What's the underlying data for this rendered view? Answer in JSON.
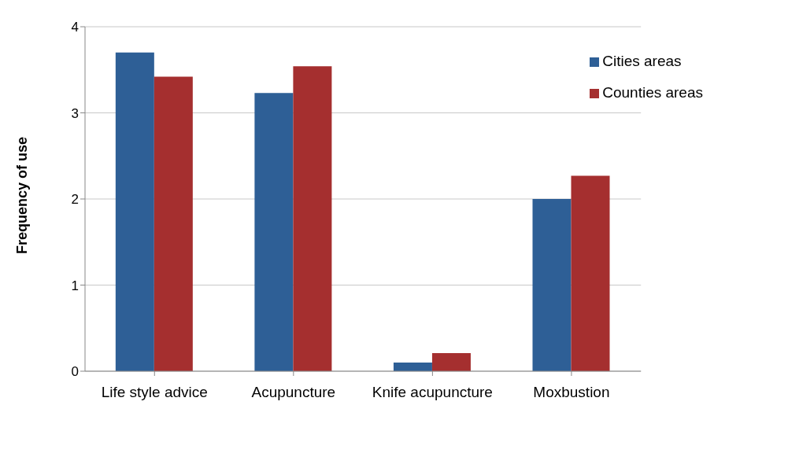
{
  "chart_data": {
    "type": "bar",
    "ylabel": "Frequency of use",
    "categories": [
      "Life style advice",
      "Acupuncture",
      "Knife acupuncture",
      "Moxbustion"
    ],
    "series": [
      {
        "name": "Cities areas",
        "color": "#2e5f96",
        "values": [
          3.7,
          3.23,
          0.1,
          2.0
        ]
      },
      {
        "name": "Counties areas",
        "color": "#a52f2f",
        "values": [
          3.42,
          3.54,
          0.21,
          2.27
        ]
      }
    ],
    "ylim": [
      0,
      4
    ],
    "yticks": [
      0,
      1,
      2,
      3,
      4
    ],
    "grid": "y",
    "legend": "top right"
  }
}
